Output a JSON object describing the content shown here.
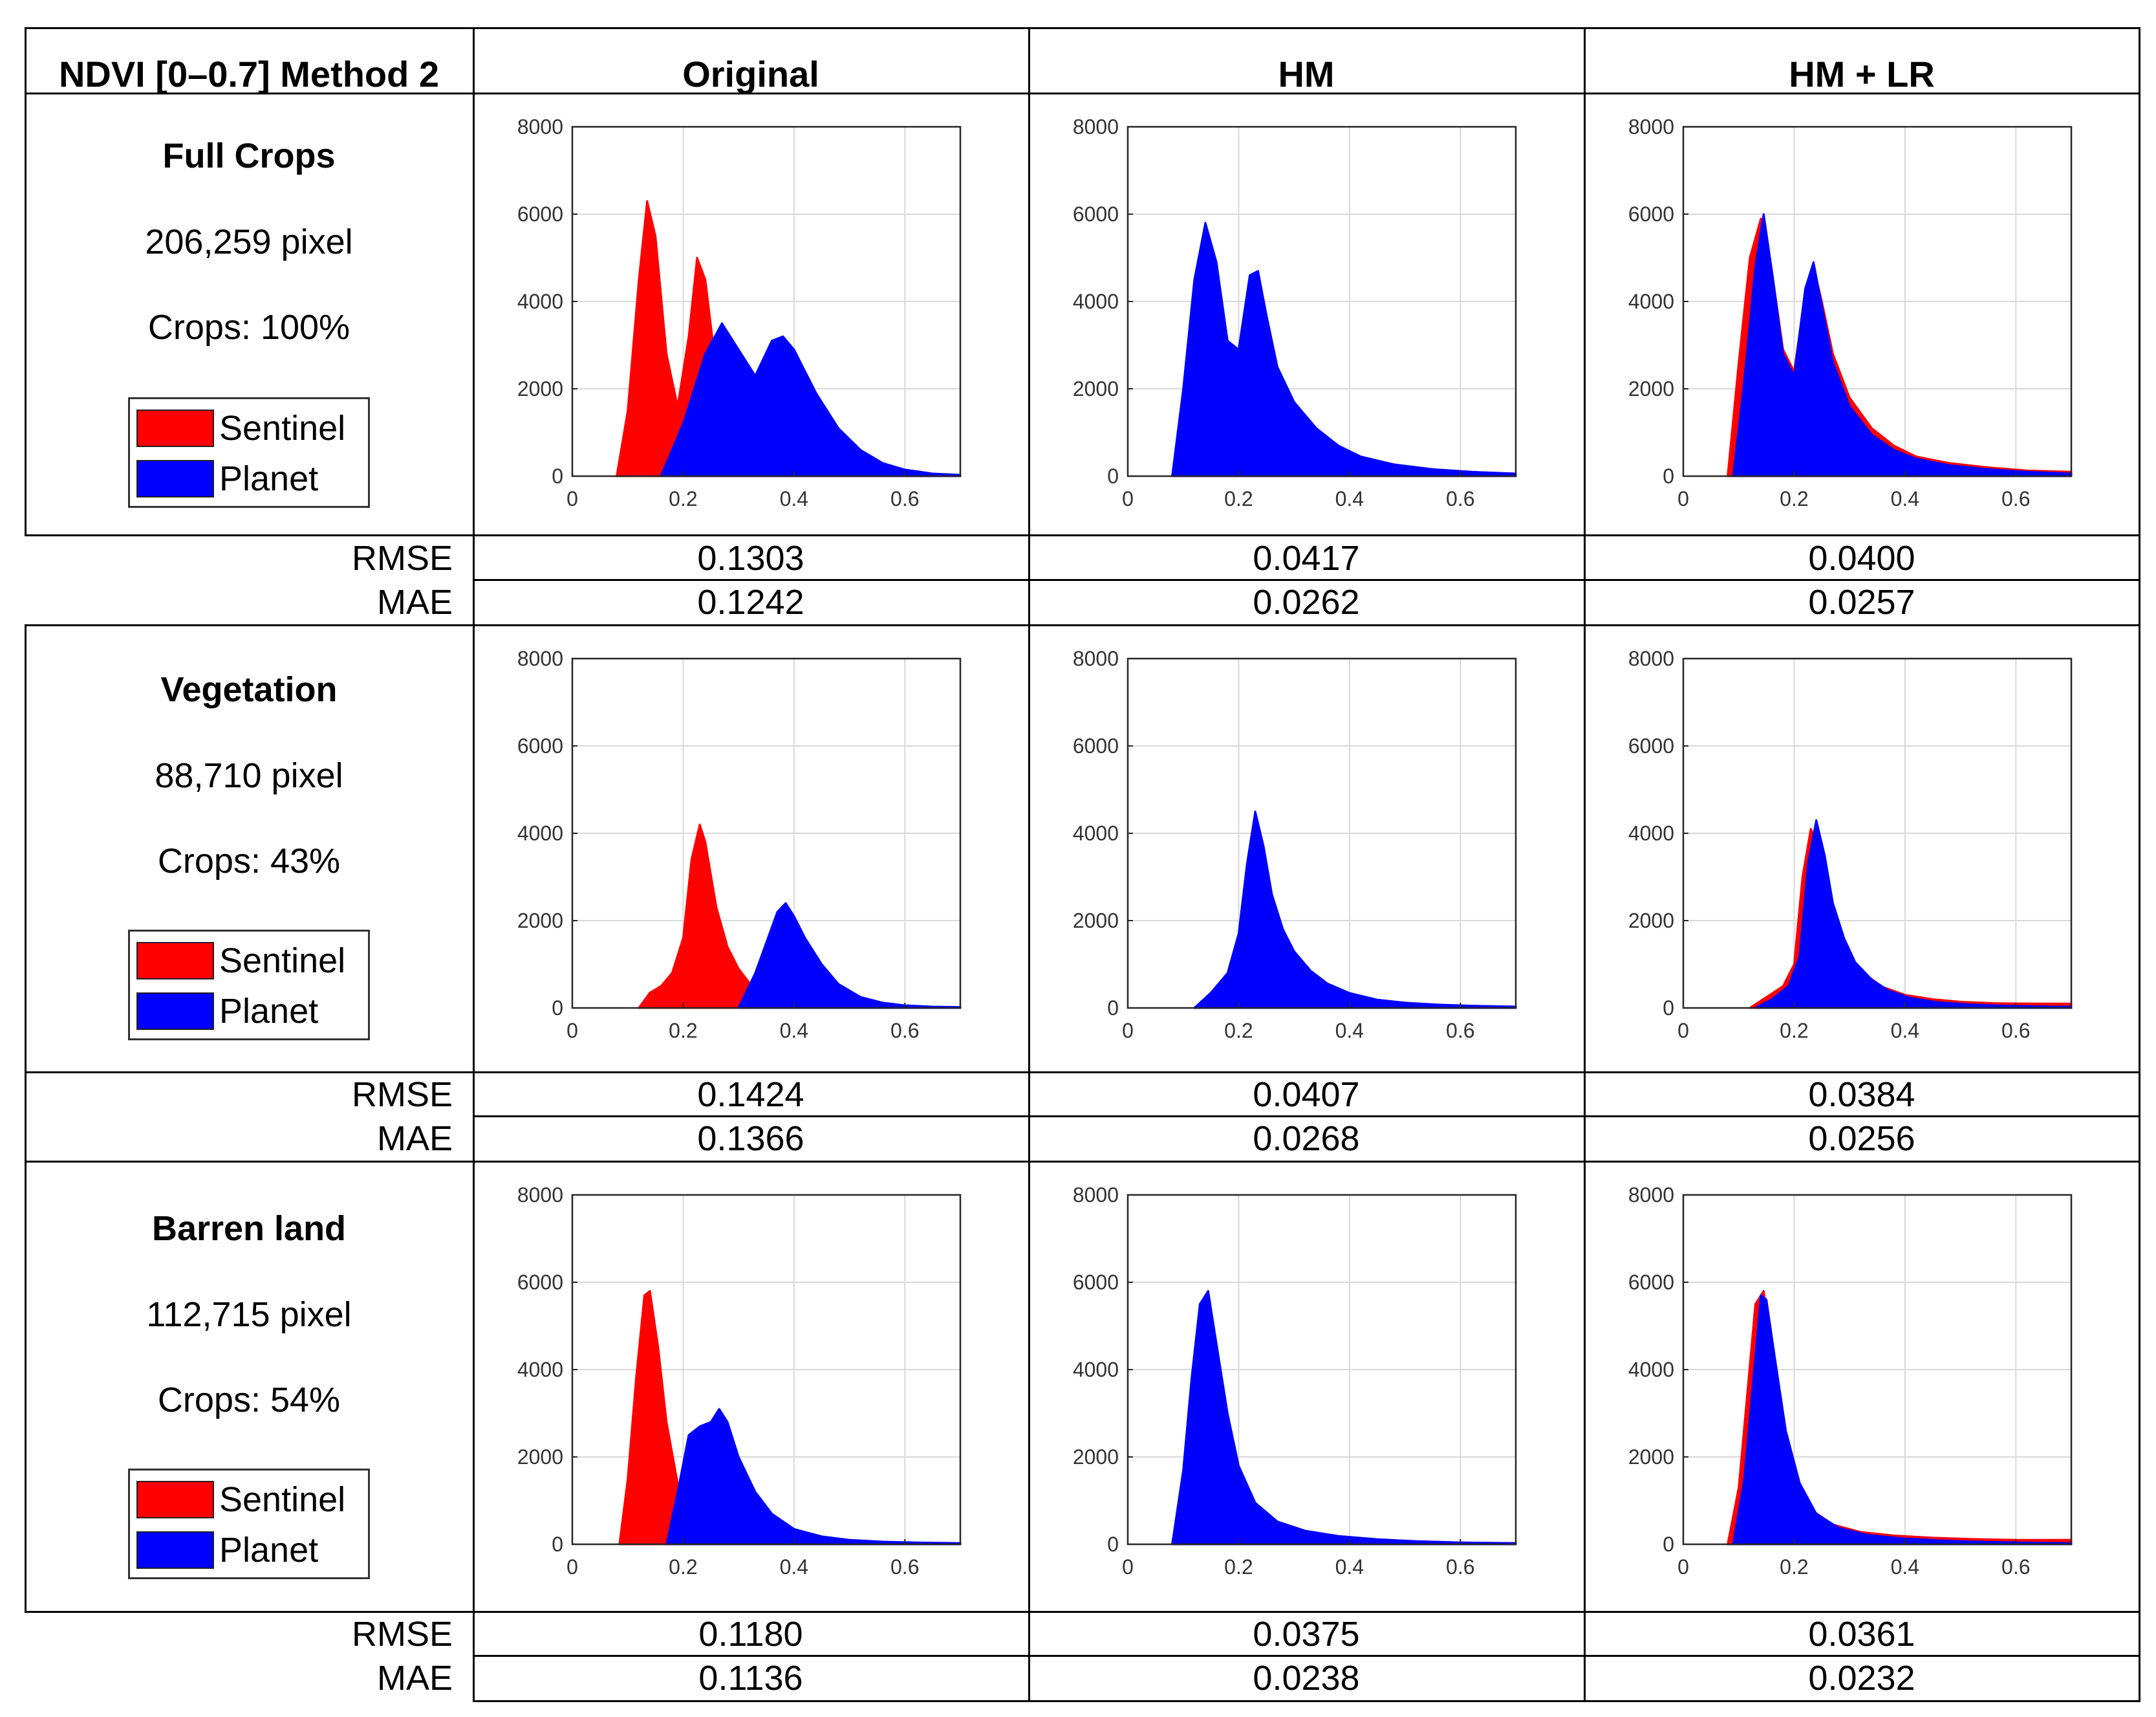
{
  "header": {
    "corner": "NDVI [0–0.7] Method 2",
    "columns": [
      "Original",
      "HM",
      "HM + LR"
    ]
  },
  "legend": {
    "sentinel": "Sentinel",
    "planet": "Planet"
  },
  "colors": {
    "sentinel": "#ff0000",
    "planet": "#0000ff"
  },
  "metric_labels": {
    "rmse": "RMSE",
    "mae": "MAE"
  },
  "rows": [
    {
      "title": "Full Crops",
      "pixels": "206,259 pixel",
      "crops": "Crops: 100%",
      "rmse": [
        "0.1303",
        "0.0417",
        "0.0400"
      ],
      "mae": [
        "0.1242",
        "0.0262",
        "0.0257"
      ]
    },
    {
      "title": "Vegetation",
      "pixels": "88,710 pixel",
      "crops": "Crops: 43%",
      "rmse": [
        "0.1424",
        "0.0407",
        "0.0384"
      ],
      "mae": [
        "0.1366",
        "0.0268",
        "0.0256"
      ]
    },
    {
      "title": "Barren land",
      "pixels": "112,715 pixel",
      "crops": "Crops: 54%",
      "rmse": [
        "0.1180",
        "0.0375",
        "0.0361"
      ],
      "mae": [
        "0.1136",
        "0.0238",
        "0.0232"
      ]
    }
  ],
  "chart_data": [
    {
      "type": "area",
      "row": "Full Crops",
      "column": "Original",
      "xlim": [
        0,
        0.7
      ],
      "ylim": [
        0,
        8000
      ],
      "xticks": [
        0,
        0.2,
        0.4,
        0.6
      ],
      "yticks": [
        0,
        2000,
        4000,
        6000,
        8000
      ],
      "grid": true,
      "series": [
        {
          "name": "Sentinel",
          "x": [
            0.08,
            0.1,
            0.12,
            0.135,
            0.15,
            0.17,
            0.19,
            0.21,
            0.225,
            0.24,
            0.26,
            0.28,
            0.3,
            0.32
          ],
          "values": [
            0,
            1500,
            4500,
            6300,
            5500,
            2800,
            1600,
            3200,
            5000,
            4500,
            2400,
            1200,
            500,
            0
          ]
        },
        {
          "name": "Planet",
          "x": [
            0.16,
            0.2,
            0.24,
            0.27,
            0.3,
            0.33,
            0.36,
            0.38,
            0.4,
            0.44,
            0.48,
            0.52,
            0.56,
            0.6,
            0.65,
            0.7
          ],
          "values": [
            0,
            1200,
            2800,
            3500,
            2900,
            2300,
            3100,
            3200,
            2900,
            1900,
            1100,
            600,
            300,
            150,
            60,
            30
          ]
        }
      ]
    },
    {
      "type": "area",
      "row": "Full Crops",
      "column": "HM",
      "xlim": [
        0,
        0.7
      ],
      "ylim": [
        0,
        8000
      ],
      "xticks": [
        0,
        0.2,
        0.4,
        0.6
      ],
      "yticks": [
        0,
        2000,
        4000,
        6000,
        8000
      ],
      "grid": true,
      "series": [
        {
          "name": "Sentinel",
          "x": [
            0.08,
            0.1,
            0.12,
            0.14,
            0.16,
            0.18,
            0.2,
            0.22,
            0.235,
            0.25,
            0.27,
            0.3,
            0.34,
            0.38,
            0.42,
            0.48,
            0.55,
            0.62,
            0.7
          ],
          "values": [
            0,
            1800,
            4200,
            5600,
            4800,
            3000,
            2800,
            4400,
            4500,
            3600,
            2400,
            1600,
            1000,
            650,
            420,
            250,
            150,
            90,
            60
          ]
        },
        {
          "name": "Planet",
          "x": [
            0.08,
            0.1,
            0.12,
            0.14,
            0.16,
            0.18,
            0.2,
            0.22,
            0.235,
            0.25,
            0.27,
            0.3,
            0.34,
            0.38,
            0.42,
            0.48,
            0.55,
            0.62,
            0.7
          ],
          "values": [
            0,
            2000,
            4500,
            5800,
            4900,
            3100,
            2900,
            4600,
            4700,
            3700,
            2500,
            1700,
            1100,
            700,
            450,
            270,
            160,
            100,
            60
          ]
        }
      ]
    },
    {
      "type": "area",
      "row": "Full Crops",
      "column": "HM + LR",
      "xlim": [
        0,
        0.7
      ],
      "ylim": [
        0,
        8000
      ],
      "xticks": [
        0,
        0.2,
        0.4,
        0.6
      ],
      "yticks": [
        0,
        2000,
        4000,
        6000,
        8000
      ],
      "grid": true,
      "series": [
        {
          "name": "Sentinel",
          "x": [
            0.08,
            0.1,
            0.12,
            0.14,
            0.16,
            0.18,
            0.2,
            0.22,
            0.235,
            0.25,
            0.27,
            0.3,
            0.34,
            0.38,
            0.42,
            0.48,
            0.55,
            0.62,
            0.7
          ],
          "values": [
            0,
            2600,
            5000,
            5900,
            4700,
            2900,
            2400,
            4200,
            4800,
            4000,
            2800,
            1800,
            1100,
            700,
            450,
            300,
            200,
            130,
            100
          ]
        },
        {
          "name": "Planet",
          "x": [
            0.09,
            0.11,
            0.13,
            0.145,
            0.16,
            0.18,
            0.2,
            0.22,
            0.235,
            0.25,
            0.27,
            0.3,
            0.34,
            0.38,
            0.42,
            0.48,
            0.55,
            0.62,
            0.7
          ],
          "values": [
            0,
            2200,
            4800,
            6000,
            4700,
            2800,
            2300,
            4300,
            4900,
            3900,
            2600,
            1600,
            950,
            600,
            400,
            250,
            160,
            100,
            60
          ]
        }
      ]
    },
    {
      "type": "area",
      "row": "Vegetation",
      "column": "Original",
      "xlim": [
        0,
        0.7
      ],
      "ylim": [
        0,
        8000
      ],
      "xticks": [
        0,
        0.2,
        0.4,
        0.6
      ],
      "yticks": [
        0,
        2000,
        4000,
        6000,
        8000
      ],
      "grid": true,
      "series": [
        {
          "name": "Sentinel",
          "x": [
            0.12,
            0.14,
            0.16,
            0.18,
            0.2,
            0.215,
            0.23,
            0.24,
            0.26,
            0.28,
            0.3,
            0.33,
            0.36,
            0.4
          ],
          "values": [
            0,
            350,
            500,
            800,
            1600,
            3400,
            4200,
            3800,
            2300,
            1400,
            900,
            400,
            150,
            0
          ]
        },
        {
          "name": "Planet",
          "x": [
            0.3,
            0.33,
            0.35,
            0.37,
            0.385,
            0.4,
            0.42,
            0.45,
            0.48,
            0.52,
            0.56,
            0.6,
            0.65,
            0.7
          ],
          "values": [
            0,
            800,
            1500,
            2200,
            2400,
            2100,
            1600,
            1000,
            550,
            250,
            120,
            60,
            30,
            20
          ]
        }
      ]
    },
    {
      "type": "area",
      "row": "Vegetation",
      "column": "HM",
      "xlim": [
        0,
        0.7
      ],
      "ylim": [
        0,
        8000
      ],
      "xticks": [
        0,
        0.2,
        0.4,
        0.6
      ],
      "yticks": [
        0,
        2000,
        4000,
        6000,
        8000
      ],
      "grid": true,
      "series": [
        {
          "name": "Sentinel",
          "x": [
            0.12,
            0.15,
            0.18,
            0.2,
            0.215,
            0.23,
            0.245,
            0.26,
            0.28,
            0.3,
            0.33,
            0.36,
            0.4,
            0.45,
            0.5,
            0.56,
            0.62,
            0.7
          ],
          "values": [
            0,
            300,
            700,
            1500,
            3000,
            4200,
            3600,
            2500,
            1700,
            1200,
            800,
            520,
            320,
            180,
            110,
            70,
            50,
            30
          ]
        },
        {
          "name": "Planet",
          "x": [
            0.12,
            0.15,
            0.18,
            0.2,
            0.215,
            0.23,
            0.245,
            0.26,
            0.28,
            0.3,
            0.33,
            0.36,
            0.4,
            0.45,
            0.5,
            0.56,
            0.62,
            0.7
          ],
          "values": [
            0,
            350,
            800,
            1700,
            3300,
            4500,
            3700,
            2600,
            1800,
            1300,
            850,
            560,
            340,
            190,
            120,
            75,
            50,
            30
          ]
        }
      ]
    },
    {
      "type": "area",
      "row": "Vegetation",
      "column": "HM + LR",
      "xlim": [
        0,
        0.7
      ],
      "ylim": [
        0,
        8000
      ],
      "xticks": [
        0,
        0.2,
        0.4,
        0.6
      ],
      "yticks": [
        0,
        2000,
        4000,
        6000,
        8000
      ],
      "grid": true,
      "series": [
        {
          "name": "Sentinel",
          "x": [
            0.12,
            0.15,
            0.18,
            0.2,
            0.215,
            0.23,
            0.245,
            0.26,
            0.28,
            0.3,
            0.33,
            0.36,
            0.4,
            0.45,
            0.5,
            0.56,
            0.62,
            0.7
          ],
          "values": [
            0,
            250,
            500,
            1000,
            3000,
            4100,
            3700,
            2600,
            1800,
            1200,
            750,
            480,
            300,
            200,
            140,
            110,
            100,
            100
          ]
        },
        {
          "name": "Planet",
          "x": [
            0.13,
            0.16,
            0.19,
            0.21,
            0.225,
            0.24,
            0.255,
            0.27,
            0.29,
            0.31,
            0.34,
            0.37,
            0.41,
            0.46,
            0.52,
            0.58,
            0.64,
            0.7
          ],
          "values": [
            0,
            200,
            500,
            1200,
            3300,
            4300,
            3500,
            2400,
            1600,
            1050,
            650,
            400,
            230,
            130,
            80,
            50,
            35,
            25
          ]
        }
      ]
    },
    {
      "type": "area",
      "row": "Barren land",
      "column": "Original",
      "xlim": [
        0,
        0.7
      ],
      "ylim": [
        0,
        8000
      ],
      "xticks": [
        0,
        0.2,
        0.4,
        0.6
      ],
      "yticks": [
        0,
        2000,
        4000,
        6000,
        8000
      ],
      "grid": true,
      "series": [
        {
          "name": "Sentinel",
          "x": [
            0.085,
            0.1,
            0.115,
            0.13,
            0.14,
            0.155,
            0.17,
            0.19,
            0.21,
            0.23,
            0.26
          ],
          "values": [
            0,
            1500,
            3800,
            5700,
            5800,
            4500,
            2800,
            1400,
            600,
            200,
            0
          ]
        },
        {
          "name": "Planet",
          "x": [
            0.17,
            0.19,
            0.21,
            0.23,
            0.25,
            0.265,
            0.28,
            0.3,
            0.33,
            0.36,
            0.4,
            0.45,
            0.5,
            0.56,
            0.62,
            0.7
          ],
          "values": [
            0,
            1200,
            2500,
            2700,
            2800,
            3100,
            2800,
            2000,
            1200,
            700,
            350,
            180,
            100,
            60,
            40,
            25
          ]
        }
      ]
    },
    {
      "type": "area",
      "row": "Barren land",
      "column": "HM",
      "xlim": [
        0,
        0.7
      ],
      "ylim": [
        0,
        8000
      ],
      "xticks": [
        0,
        0.2,
        0.4,
        0.6
      ],
      "yticks": [
        0,
        2000,
        4000,
        6000,
        8000
      ],
      "grid": true,
      "series": [
        {
          "name": "Sentinel",
          "x": [
            0.08,
            0.1,
            0.115,
            0.13,
            0.145,
            0.16,
            0.18,
            0.2,
            0.23,
            0.27,
            0.32,
            0.38,
            0.45,
            0.52,
            0.6,
            0.7
          ],
          "values": [
            0,
            1500,
            3500,
            5200,
            5600,
            4500,
            2900,
            1700,
            900,
            500,
            300,
            180,
            110,
            70,
            40,
            25
          ]
        },
        {
          "name": "Planet",
          "x": [
            0.08,
            0.1,
            0.115,
            0.13,
            0.145,
            0.16,
            0.18,
            0.2,
            0.23,
            0.27,
            0.32,
            0.38,
            0.45,
            0.52,
            0.6,
            0.7
          ],
          "values": [
            0,
            1700,
            3800,
            5500,
            5800,
            4600,
            3000,
            1800,
            950,
            520,
            310,
            190,
            115,
            70,
            40,
            25
          ]
        }
      ]
    },
    {
      "type": "area",
      "row": "Barren land",
      "column": "HM + LR",
      "xlim": [
        0,
        0.7
      ],
      "ylim": [
        0,
        8000
      ],
      "xticks": [
        0,
        0.2,
        0.4,
        0.6
      ],
      "yticks": [
        0,
        2000,
        4000,
        6000,
        8000
      ],
      "grid": true,
      "series": [
        {
          "name": "Sentinel",
          "x": [
            0.08,
            0.1,
            0.115,
            0.13,
            0.145,
            0.16,
            0.18,
            0.2,
            0.23,
            0.27,
            0.32,
            0.38,
            0.45,
            0.52,
            0.6,
            0.7
          ],
          "values": [
            0,
            1300,
            3400,
            5500,
            5800,
            4500,
            2800,
            1600,
            800,
            450,
            280,
            200,
            150,
            120,
            100,
            100
          ]
        },
        {
          "name": "Planet",
          "x": [
            0.09,
            0.11,
            0.125,
            0.14,
            0.15,
            0.165,
            0.185,
            0.21,
            0.24,
            0.28,
            0.33,
            0.39,
            0.46,
            0.53,
            0.61,
            0.7
          ],
          "values": [
            0,
            1500,
            3600,
            5700,
            5600,
            4300,
            2600,
            1400,
            700,
            380,
            220,
            140,
            90,
            60,
            40,
            25
          ]
        }
      ]
    }
  ]
}
